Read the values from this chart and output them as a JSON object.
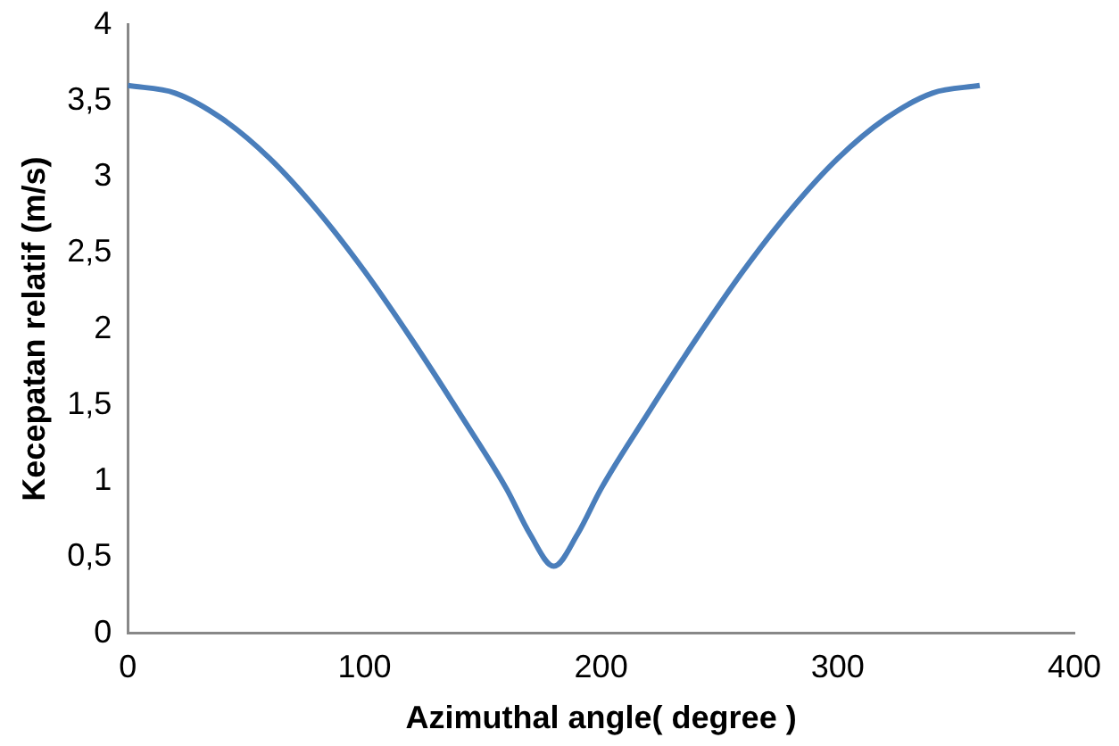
{
  "chart_data": {
    "type": "line",
    "xlabel": "Azimuthal angle( degree )",
    "ylabel": "Kecepatan relatif (m/s)",
    "x": [
      0,
      20,
      40,
      60,
      80,
      100,
      120,
      140,
      160,
      170,
      180,
      190,
      200,
      220,
      240,
      260,
      280,
      300,
      320,
      340,
      360
    ],
    "series": [
      {
        "color": "#4a7ebb",
        "values": [
          3.6,
          3.55,
          3.38,
          3.12,
          2.78,
          2.38,
          1.93,
          1.45,
          0.95,
          0.65,
          0.44,
          0.65,
          0.95,
          1.45,
          1.93,
          2.38,
          2.78,
          3.12,
          3.38,
          3.55,
          3.6
        ]
      }
    ],
    "xlim": [
      0,
      400
    ],
    "xticks": [
      0,
      100,
      200,
      300,
      400
    ],
    "ylim": [
      0,
      4
    ],
    "yticks": [
      0,
      {
        "value": 0.5,
        "label": "0,5"
      },
      1,
      {
        "value": 1.5,
        "label": "1,5"
      },
      2,
      {
        "value": 2.5,
        "label": "2,5"
      },
      3,
      {
        "value": 3.5,
        "label": "3,5"
      },
      4
    ],
    "grid": false,
    "legend": false,
    "marker": "none",
    "line_style": "solid"
  }
}
